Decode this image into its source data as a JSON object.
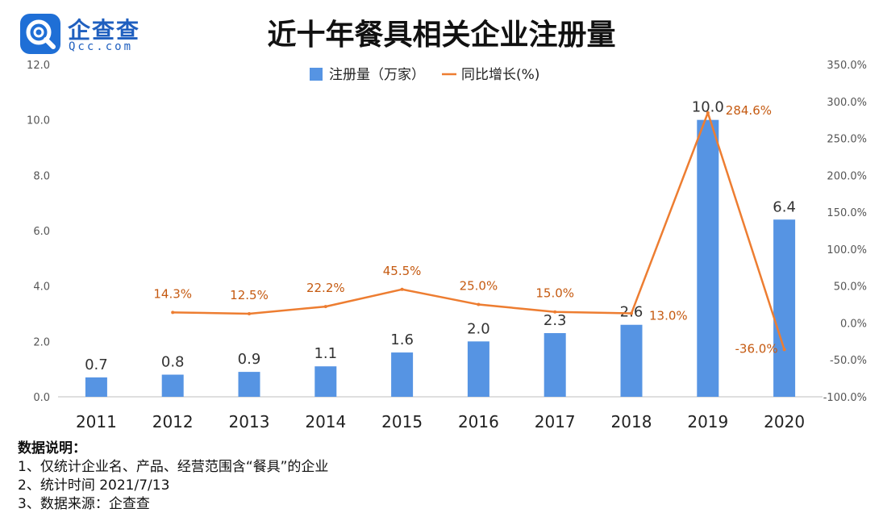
{
  "logo": {
    "name": "企查查",
    "sub": "Qcc.com"
  },
  "chart_data": {
    "type": "bar",
    "title": "近十年餐具相关企业注册量",
    "categories": [
      "2011",
      "2012",
      "2013",
      "2014",
      "2015",
      "2016",
      "2017",
      "2018",
      "2019",
      "2020"
    ],
    "series": [
      {
        "name": "注册量（万家）",
        "type": "bar",
        "axis": "left",
        "values": [
          0.7,
          0.8,
          0.9,
          1.1,
          1.6,
          2.0,
          2.3,
          2.6,
          10.0,
          6.4
        ],
        "labels": [
          "0.7",
          "0.8",
          "0.9",
          "1.1",
          "1.6",
          "2.0",
          "2.3",
          "2.6",
          "10.0",
          "6.4"
        ],
        "color": "#5694e3"
      },
      {
        "name": "同比增长(%)",
        "type": "line",
        "axis": "right",
        "values": [
          null,
          14.3,
          12.5,
          22.2,
          45.5,
          25.0,
          15.0,
          13.0,
          284.6,
          -36.0
        ],
        "labels": [
          "",
          "14.3%",
          "12.5%",
          "22.2%",
          "45.5%",
          "25.0%",
          "15.0%",
          "13.0%",
          "284.6%",
          "-36.0%"
        ],
        "color": "#ed7d31"
      }
    ],
    "y_left": {
      "ylim": [
        0,
        12
      ],
      "ticks": [
        "0.0",
        "2.0",
        "4.0",
        "6.0",
        "8.0",
        "10.0",
        "12.0"
      ]
    },
    "y_right": {
      "ylim": [
        -100,
        350
      ],
      "ticks": [
        "-100.0%",
        "-50.0%",
        "0.0%",
        "50.0%",
        "100.0%",
        "150.0%",
        "200.0%",
        "250.0%",
        "300.0%",
        "350.0%"
      ]
    },
    "legend_position": "top-center",
    "grid": false
  },
  "notes": {
    "heading": "数据说明：",
    "items": [
      "1、仅统计企业名、产品、经营范围含“餐具”的企业",
      "2、统计时间 2021/7/13",
      "3、数据来源：企查查"
    ]
  }
}
